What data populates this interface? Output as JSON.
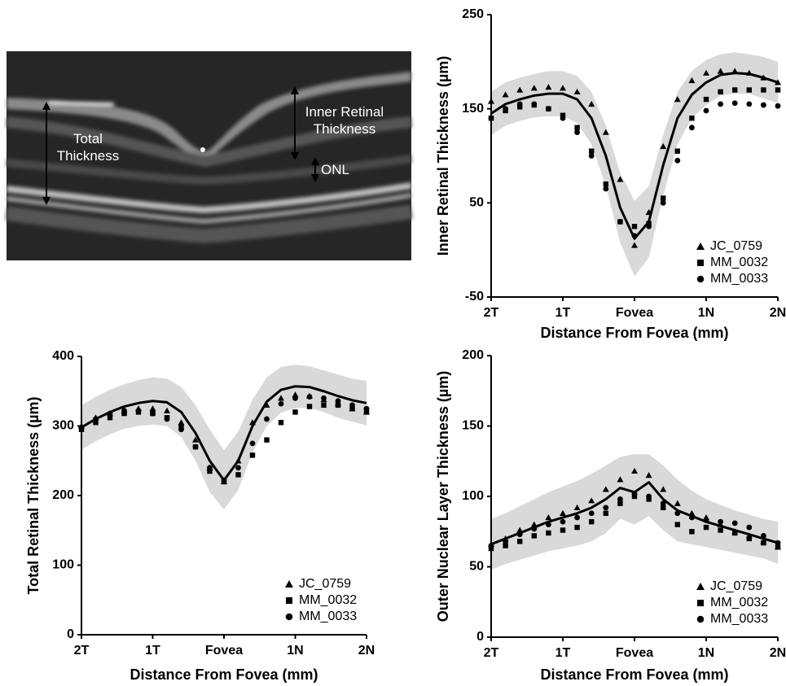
{
  "oct_image": {
    "annotations": [
      "Total Thickness",
      "Inner Retinal Thickness",
      "ONL"
    ]
  },
  "chart_data": [
    {
      "type": "scatter",
      "ylabel": "Inner Retinal Thickness (µm)",
      "xlabel": "Distance From Fovea (mm)",
      "xlim": [
        -2,
        2
      ],
      "xticks": [
        {
          "value": -2,
          "label": "2T"
        },
        {
          "value": -1,
          "label": "1T"
        },
        {
          "value": 0,
          "label": "Fovea"
        },
        {
          "value": 1,
          "label": "1N"
        },
        {
          "value": 2,
          "label": "2N"
        }
      ],
      "ylim": [
        -50,
        250
      ],
      "yticks": [
        -50,
        50,
        150,
        250
      ],
      "legend": "lower right",
      "x": [
        -2,
        -1.8,
        -1.6,
        -1.4,
        -1.2,
        -1,
        -0.8,
        -0.6,
        -0.4,
        -0.2,
        0,
        0.2,
        0.4,
        0.6,
        0.8,
        1,
        1.2,
        1.4,
        1.6,
        1.8,
        2
      ],
      "band": {
        "color": "#d9d9d9",
        "upper": [
          168,
          178,
          183,
          187,
          190,
          190,
          185,
          168,
          132,
          82,
          52,
          68,
          122,
          168,
          190,
          202,
          208,
          210,
          208,
          205,
          200
        ],
        "lower": [
          122,
          132,
          137,
          141,
          142,
          142,
          135,
          112,
          68,
          8,
          -28,
          -8,
          58,
          112,
          140,
          154,
          164,
          166,
          166,
          161,
          156
        ]
      },
      "mean": {
        "color": "#000000",
        "values": [
          145,
          155,
          160,
          164,
          166,
          166,
          160,
          140,
          100,
          45,
          12,
          30,
          90,
          140,
          165,
          178,
          186,
          188,
          187,
          183,
          178
        ]
      },
      "series": [
        {
          "name": "JC_0759",
          "marker": "triangle",
          "color": "#000000",
          "values": [
            158,
            165,
            170,
            172,
            173,
            172,
            168,
            155,
            125,
            75,
            5,
            40,
            110,
            160,
            180,
            188,
            190,
            190,
            188,
            183,
            178
          ]
        },
        {
          "name": "MM_0032",
          "marker": "square",
          "color": "#000000",
          "values": [
            140,
            148,
            152,
            154,
            150,
            143,
            130,
            105,
            70,
            30,
            25,
            28,
            55,
            105,
            140,
            160,
            168,
            170,
            170,
            170,
            170
          ]
        },
        {
          "name": "MM_0033",
          "marker": "circle",
          "color": "#000000",
          "values": [
            140,
            150,
            155,
            155,
            150,
            140,
            125,
            100,
            65,
            30,
            15,
            25,
            50,
            95,
            130,
            148,
            155,
            156,
            155,
            154,
            153
          ]
        }
      ]
    },
    {
      "type": "scatter",
      "ylabel": "Total Retinal Thickness (µm)",
      "xlabel": "Distance From Fovea (mm)",
      "xlim": [
        -2,
        2
      ],
      "xticks": [
        {
          "value": -2,
          "label": "2T"
        },
        {
          "value": -1,
          "label": "1T"
        },
        {
          "value": 0,
          "label": "Fovea"
        },
        {
          "value": 1,
          "label": "1N"
        },
        {
          "value": 2,
          "label": "2N"
        }
      ],
      "ylim": [
        0,
        400
      ],
      "yticks": [
        0,
        100,
        200,
        300,
        400
      ],
      "legend": "lower right",
      "x": [
        -2,
        -1.8,
        -1.6,
        -1.4,
        -1.2,
        -1,
        -0.8,
        -0.6,
        -0.4,
        -0.2,
        0,
        0.2,
        0.4,
        0.6,
        0.8,
        1,
        1.2,
        1.4,
        1.6,
        1.8,
        2
      ],
      "band": {
        "color": "#d9d9d9",
        "upper": [
          330,
          342,
          352,
          360,
          366,
          370,
          368,
          356,
          330,
          295,
          265,
          292,
          338,
          370,
          385,
          388,
          386,
          380,
          374,
          368,
          365
        ],
        "lower": [
          266,
          278,
          288,
          296,
          300,
          302,
          300,
          284,
          250,
          205,
          180,
          208,
          262,
          300,
          319,
          326,
          326,
          320,
          312,
          306,
          301
        ]
      },
      "mean": {
        "color": "#000000",
        "values": [
          298,
          310,
          320,
          328,
          333,
          336,
          334,
          320,
          290,
          250,
          222,
          250,
          300,
          335,
          352,
          357,
          356,
          350,
          343,
          337,
          333
        ]
      },
      "series": [
        {
          "name": "JC_0759",
          "marker": "triangle",
          "color": "#000000",
          "values": [
            300,
            312,
            318,
            322,
            325,
            325,
            322,
            305,
            280,
            240,
            220,
            250,
            305,
            330,
            340,
            345,
            343,
            338,
            333,
            325,
            320
          ]
        },
        {
          "name": "MM_0032",
          "marker": "square",
          "color": "#000000",
          "values": [
            295,
            305,
            312,
            318,
            320,
            318,
            312,
            298,
            270,
            235,
            220,
            230,
            258,
            280,
            305,
            320,
            328,
            330,
            330,
            325,
            322
          ]
        },
        {
          "name": "MM_0033",
          "marker": "circle",
          "color": "#000000",
          "values": [
            298,
            310,
            318,
            322,
            322,
            318,
            310,
            295,
            270,
            240,
            222,
            240,
            275,
            310,
            332,
            340,
            342,
            340,
            336,
            330,
            325
          ]
        }
      ]
    },
    {
      "type": "scatter",
      "ylabel": "Outer Nuclear Layer Thickness (µm)",
      "xlabel": "Distance From Fovea (mm)",
      "xlim": [
        -2,
        2
      ],
      "xticks": [
        {
          "value": -2,
          "label": "2T"
        },
        {
          "value": -1,
          "label": "1T"
        },
        {
          "value": 0,
          "label": "Fovea"
        },
        {
          "value": 1,
          "label": "1N"
        },
        {
          "value": 2,
          "label": "2N"
        }
      ],
      "ylim": [
        0,
        200
      ],
      "yticks": [
        0,
        50,
        100,
        150,
        200
      ],
      "legend": "lower right",
      "x": [
        -2,
        -1.8,
        -1.6,
        -1.4,
        -1.2,
        -1,
        -0.8,
        -0.6,
        -0.4,
        -0.2,
        0,
        0.2,
        0.4,
        0.6,
        0.8,
        1,
        1.2,
        1.4,
        1.6,
        1.8,
        2
      ],
      "band": {
        "color": "#d9d9d9",
        "upper": [
          84,
          88,
          93,
          98,
          103,
          107,
          111,
          116,
          122,
          128,
          130,
          130,
          122,
          112,
          104,
          98,
          94,
          90,
          87,
          84,
          82
        ],
        "lower": [
          48,
          52,
          55,
          58,
          61,
          63,
          65,
          68,
          74,
          84,
          80,
          86,
          76,
          68,
          66,
          64,
          62,
          60,
          58,
          56,
          52
        ]
      },
      "mean": {
        "color": "#000000",
        "values": [
          66,
          70,
          74,
          78,
          82,
          85,
          88,
          92,
          98,
          106,
          103,
          110,
          98,
          90,
          86,
          82,
          79,
          76,
          73,
          70,
          67
        ]
      },
      "series": [
        {
          "name": "JC_0759",
          "marker": "triangle",
          "color": "#000000",
          "values": [
            66,
            70,
            76,
            80,
            85,
            88,
            92,
            97,
            105,
            112,
            118,
            115,
            105,
            95,
            88,
            85,
            80,
            75,
            72,
            68,
            64
          ]
        },
        {
          "name": "MM_0032",
          "marker": "square",
          "color": "#000000",
          "values": [
            63,
            65,
            68,
            72,
            74,
            76,
            78,
            82,
            88,
            95,
            100,
            98,
            92,
            80,
            75,
            78,
            76,
            74,
            70,
            67,
            64
          ]
        },
        {
          "name": "MM_0033",
          "marker": "circle",
          "color": "#000000",
          "values": [
            65,
            68,
            73,
            77,
            80,
            82,
            85,
            88,
            92,
            98,
            102,
            100,
            95,
            88,
            85,
            83,
            82,
            81,
            78,
            72,
            67
          ]
        }
      ]
    }
  ]
}
